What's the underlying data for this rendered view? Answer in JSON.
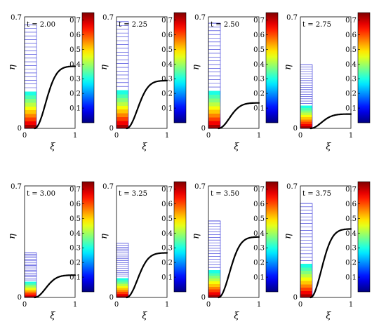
{
  "chart_data": {
    "type": "panel_grid",
    "axis_labels": {
      "x": "ξ",
      "y": "η"
    },
    "x_ticks": [
      "0",
      "1"
    ],
    "y_ticks": [
      "0",
      "0.7"
    ],
    "xlim": [
      0,
      1
    ],
    "ylim": [
      0,
      0.7
    ],
    "colorbar": {
      "range": [
        0,
        0.75
      ],
      "ticks": [
        "0.1",
        "0.2",
        "0.3",
        "0.4",
        "0.5",
        "0.6",
        "0.7"
      ],
      "colormap": "jet"
    },
    "panels": [
      {
        "time_label": "t = 2.00",
        "front_height": 0.39,
        "profile_height": 0.65
      },
      {
        "time_label": "t = 2.25",
        "front_height": 0.3,
        "profile_height": 0.67
      },
      {
        "time_label": "t = 2.50",
        "front_height": 0.16,
        "profile_height": 0.66
      },
      {
        "time_label": "t = 2.75",
        "front_height": 0.09,
        "profile_height": 0.4
      },
      {
        "time_label": "t = 3.00",
        "front_height": 0.14,
        "profile_height": 0.28
      },
      {
        "time_label": "t = 3.25",
        "front_height": 0.28,
        "profile_height": 0.34
      },
      {
        "time_label": "t = 3.50",
        "front_height": 0.38,
        "profile_height": 0.48
      },
      {
        "time_label": "t = 3.75",
        "front_height": 0.43,
        "profile_height": 0.59
      }
    ]
  }
}
